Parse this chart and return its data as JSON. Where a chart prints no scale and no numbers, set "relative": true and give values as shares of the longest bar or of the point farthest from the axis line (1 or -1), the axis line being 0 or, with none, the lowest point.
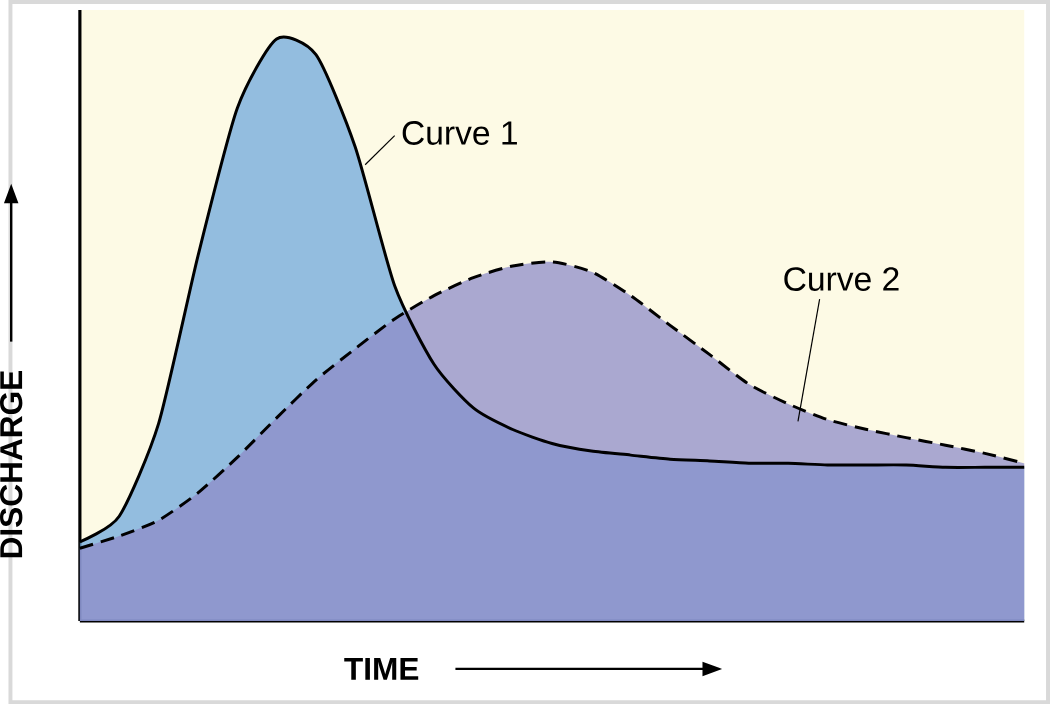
{
  "chart_data": {
    "type": "area",
    "relative": true,
    "xlabel": "TIME",
    "ylabel": "DISCHARGE",
    "categories": [
      null,
      null,
      null,
      null,
      null,
      null,
      null,
      null,
      null,
      null,
      null,
      null,
      null,
      null,
      null,
      null,
      null,
      null,
      null,
      null,
      null,
      null,
      null,
      null,
      null
    ],
    "series": [
      {
        "name": "Curve 1",
        "color": "#6fa8dc",
        "line_style": "solid",
        "values": [
          0.136,
          0.18,
          0.339,
          0.627,
          0.881,
          1.0,
          0.973,
          0.814,
          0.576,
          0.441,
          0.366,
          0.329,
          0.305,
          0.292,
          0.285,
          0.278,
          0.275,
          0.271,
          0.271,
          0.268,
          0.268,
          0.268,
          0.264,
          0.264,
          0.264
        ]
      },
      {
        "name": "Curve 2",
        "color": "#8e8cc8",
        "line_style": "dashed",
        "values": [
          0.125,
          0.146,
          0.173,
          0.22,
          0.281,
          0.349,
          0.414,
          0.468,
          0.519,
          0.559,
          0.59,
          0.61,
          0.617,
          0.6,
          0.559,
          0.508,
          0.458,
          0.407,
          0.373,
          0.346,
          0.329,
          0.315,
          0.302,
          0.288,
          0.271
        ]
      }
    ]
  }
}
